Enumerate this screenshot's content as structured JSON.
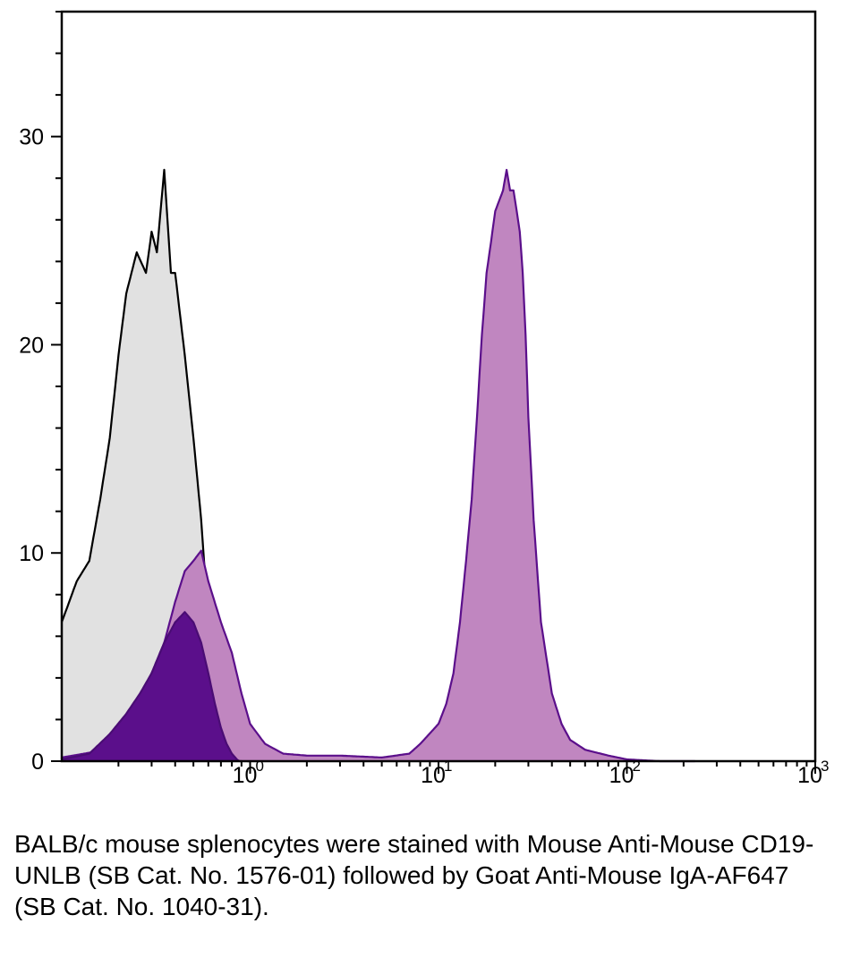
{
  "chart_data": {
    "type": "area",
    "title": "",
    "xlabel": "",
    "ylabel": "",
    "x_scale": "log",
    "xlim": [
      0.1,
      1000
    ],
    "ylim": [
      0,
      36
    ],
    "grid": false,
    "y_ticks": [
      0,
      10,
      20,
      30
    ],
    "y_tick_labels": [
      "0",
      "10",
      "20",
      "30"
    ],
    "x_ticks": [
      1,
      10,
      100,
      1000
    ],
    "x_tick_labels": [
      {
        "base": "10",
        "exp": "0"
      },
      {
        "base": "10",
        "exp": "1"
      },
      {
        "base": "10",
        "exp": "2"
      },
      {
        "base": "10",
        "exp": "3"
      }
    ],
    "series": [
      {
        "fill": "#e1e1e1",
        "stroke": "#000000",
        "x": [
          0.1,
          0.12,
          0.14,
          0.16,
          0.18,
          0.2,
          0.22,
          0.25,
          0.28,
          0.3,
          0.32,
          0.35,
          0.38,
          0.4,
          0.45,
          0.5,
          0.55,
          0.6,
          0.7,
          0.8,
          0.9,
          1.0
        ],
        "y": [
          7,
          9,
          10,
          13,
          16,
          20,
          23,
          25,
          24,
          26,
          25,
          29,
          24,
          24,
          20,
          16,
          12,
          7,
          3,
          1,
          0.3,
          0
        ]
      },
      {
        "fill": "#c086c0",
        "stroke": "#5b0f8b",
        "x": [
          0.1,
          0.15,
          0.2,
          0.25,
          0.3,
          0.35,
          0.4,
          0.45,
          0.5,
          0.55,
          0.6,
          0.7,
          0.8,
          0.9,
          1.0,
          1.2,
          1.5,
          2,
          3,
          5,
          7,
          8,
          10,
          11,
          12,
          13,
          14,
          15,
          16,
          17,
          18,
          19,
          20,
          21,
          22,
          23,
          24,
          25,
          26,
          27,
          28,
          29,
          30,
          32,
          35,
          40,
          45,
          50,
          60,
          80,
          100,
          150,
          200,
          230
        ],
        "y": [
          0.3,
          0.6,
          1.5,
          3,
          4.5,
          6,
          8,
          9.5,
          10,
          10.5,
          9,
          7,
          5.5,
          3.5,
          2,
          1,
          0.5,
          0.4,
          0.4,
          0.3,
          0.5,
          1,
          2,
          3,
          4.5,
          7,
          10,
          13,
          17,
          21,
          24,
          25.5,
          27,
          27.5,
          28,
          29,
          28,
          28,
          27,
          26,
          24,
          21,
          17,
          12,
          7,
          3.5,
          2,
          1.2,
          0.7,
          0.4,
          0.2,
          0.1,
          0.1,
          0
        ]
      },
      {
        "fill": "#5b0f8b",
        "stroke": "#4a0c74",
        "x": [
          0.1,
          0.14,
          0.18,
          0.22,
          0.26,
          0.3,
          0.35,
          0.4,
          0.45,
          0.5,
          0.55,
          0.6,
          0.65,
          0.7,
          0.75,
          0.8,
          0.85,
          0.9
        ],
        "y": [
          0.2,
          0.5,
          1.5,
          2.5,
          3.5,
          4.5,
          6.0,
          7.0,
          7.5,
          7.0,
          6.0,
          4.5,
          3.0,
          1.8,
          1.0,
          0.5,
          0.2,
          0
        ]
      }
    ]
  },
  "caption": "BALB/c mouse splenocytes were stained with Mouse Anti-Mouse CD19-UNLB (SB Cat. No. 1576-01) followed by Goat Anti-Mouse IgA-AF647 (SB Cat. No. 1040-31)."
}
